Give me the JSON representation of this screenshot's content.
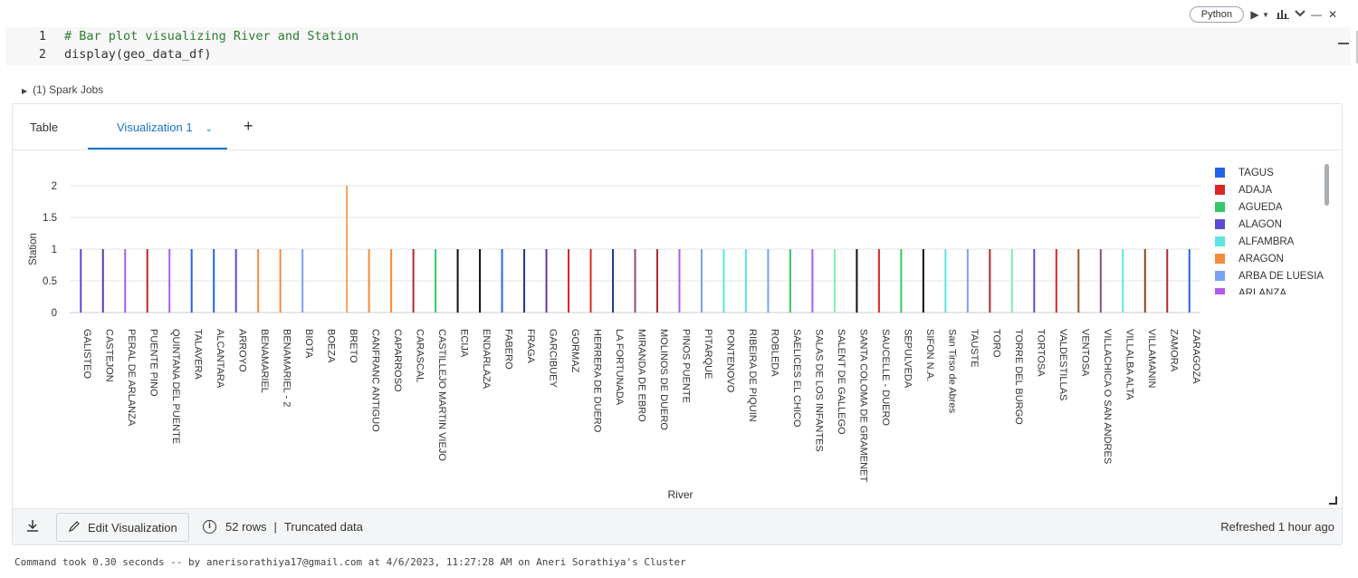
{
  "toolbar": {
    "language": "Python",
    "run_icon": "play-icon",
    "chart_icon": "chart-icon",
    "chevron_icon": "chevron-down-icon",
    "minimize_icon": "minimize-icon",
    "close_icon": "close-icon"
  },
  "code": {
    "lines": [
      {
        "num": "1",
        "text": "# Bar plot visualizing River and Station"
      },
      {
        "num": "2",
        "text": "display(geo_data_df)"
      }
    ]
  },
  "spark_jobs": "(1) Spark Jobs",
  "tabs": {
    "table": "Table",
    "visualization": "Visualization 1",
    "add": "+"
  },
  "chart_data": {
    "type": "bar",
    "xlabel": "River",
    "ylabel": "Station",
    "ylim": [
      0,
      2
    ],
    "yticks": [
      "0",
      "0.5",
      "1",
      "1.5",
      "2"
    ],
    "categories": [
      "GALISTEO",
      "CASTEJON",
      "PERAL DE ARLANZA",
      "PUENTE PINO",
      "QUINTANA DEL PUENTE",
      "TALAVERA",
      "ALCANTARA",
      "ARROYO",
      "BENAMARIEL",
      "BENAMARIEL - 2",
      "BIOTA",
      "BOEZA",
      "BRETO",
      "CANFRANC ANTIGUO",
      "CAPARROSO",
      "CARASCAL",
      "CASTILLEJO MARTIN VIEJO",
      "ECIJA",
      "ENDARLAZA",
      "FABERO",
      "FRAGA",
      "GARCIBUEY",
      "GORMAZ",
      "HERRERA DE DUERO",
      "LA FORTUNADA",
      "MIRANDA DE EBRO",
      "MOLINOS DE DUERO",
      "PINOS PUENTE",
      "PITARQUE",
      "PONTENOVO",
      "RIBEIRA DE PIQUIN",
      "ROBLEDA",
      "SAELICES EL CHICO",
      "SALAS DE LOS INFANTES",
      "SALENT DE GALLEGO",
      "SANTA COLOMA DE GRAMENET",
      "SAUCELLE - DUERO",
      "SEPULVEDA",
      "SIFON N.A.",
      "San Tirso de Abres",
      "TAUSTE",
      "TORO",
      "TORRE DEL BURGO",
      "TORTOSA",
      "VALDESTILLAS",
      "VENTOSA",
      "VILLACHICA O SAN ANDRES",
      "VILLALBA ALTA",
      "VILLAMANIN",
      "ZAMORA",
      "ZARAGOZA"
    ],
    "legend": [
      {
        "name": "TAGUS",
        "color": "#2563eb"
      },
      {
        "name": "ADAJA",
        "color": "#dc2626"
      },
      {
        "name": "AGUEDA",
        "color": "#34c86a"
      },
      {
        "name": "ALAGON",
        "color": "#5b4bd6"
      },
      {
        "name": "ALFAMBRA",
        "color": "#5ce6e0"
      },
      {
        "name": "ARAGON",
        "color": "#f58b3c"
      },
      {
        "name": "ARBA DE LUESIA",
        "color": "#7ea0f2"
      },
      {
        "name": "ARLANZA",
        "color": "#b05ce6"
      }
    ],
    "series_bars": [
      {
        "value": 1,
        "color": "#5b4bd6"
      },
      {
        "value": 1,
        "color": "#5b3a9e"
      },
      {
        "value": 1,
        "color": "#b05ce6"
      },
      {
        "value": 1,
        "color": "#b3282d"
      },
      {
        "value": 1,
        "color": "#b05ce6"
      },
      {
        "value": 1,
        "color": "#2563eb"
      },
      {
        "value": 1,
        "color": "#2563eb"
      },
      {
        "value": 1,
        "color": "#5b4bd6"
      },
      {
        "value": 1,
        "color": "#f58b3c"
      },
      {
        "value": 1,
        "color": "#f58b3c"
      },
      {
        "value": 1,
        "color": "#7ea0f2"
      },
      {
        "value": 0,
        "color": "#999999"
      },
      {
        "value": 2,
        "color": "#f5a25c"
      },
      {
        "value": 1,
        "color": "#f58b3c"
      },
      {
        "value": 1,
        "color": "#f58b3c"
      },
      {
        "value": 1,
        "color": "#b3282d"
      },
      {
        "value": 1,
        "color": "#34c86a"
      },
      {
        "value": 1,
        "color": "#111111"
      },
      {
        "value": 1,
        "color": "#111111"
      },
      {
        "value": 1,
        "color": "#2563eb"
      },
      {
        "value": 1,
        "color": "#1e3a8a"
      },
      {
        "value": 1,
        "color": "#5b3a9e"
      },
      {
        "value": 1,
        "color": "#dc2626"
      },
      {
        "value": 1,
        "color": "#dc2626"
      },
      {
        "value": 1,
        "color": "#1e3a8a"
      },
      {
        "value": 1,
        "color": "#8a4e7a"
      },
      {
        "value": 1,
        "color": "#b3282d"
      },
      {
        "value": 1,
        "color": "#b05ce6"
      },
      {
        "value": 1,
        "color": "#7ea0f2"
      },
      {
        "value": 1,
        "color": "#5ce6e0"
      },
      {
        "value": 1,
        "color": "#5ce6e0"
      },
      {
        "value": 1,
        "color": "#7ea0f2"
      },
      {
        "value": 1,
        "color": "#34c86a"
      },
      {
        "value": 1,
        "color": "#b05ce6"
      },
      {
        "value": 1,
        "color": "#7ef0b0"
      },
      {
        "value": 1,
        "color": "#111111"
      },
      {
        "value": 1,
        "color": "#dc2626"
      },
      {
        "value": 1,
        "color": "#34c86a"
      },
      {
        "value": 1,
        "color": "#111111"
      },
      {
        "value": 1,
        "color": "#5ce6e0"
      },
      {
        "value": 1,
        "color": "#7ea0f2"
      },
      {
        "value": 1,
        "color": "#b3282d"
      },
      {
        "value": 1,
        "color": "#7ef0b0"
      },
      {
        "value": 1,
        "color": "#5b4bd6"
      },
      {
        "value": 1,
        "color": "#dc2626"
      },
      {
        "value": 1,
        "color": "#a0522d"
      },
      {
        "value": 1,
        "color": "#8a4e7a"
      },
      {
        "value": 1,
        "color": "#5ce6e0"
      },
      {
        "value": 1,
        "color": "#8b4513"
      },
      {
        "value": 1,
        "color": "#b3282d"
      },
      {
        "value": 1,
        "color": "#2563eb"
      }
    ]
  },
  "footer": {
    "edit_label": "Edit Visualization",
    "rows": "52 rows",
    "truncated": "Truncated data",
    "refreshed": "Refreshed 1 hour ago"
  },
  "command_info": "Command took 0.30 seconds -- by anerisorathiya17@gmail.com at 4/6/2023, 11:27:28 AM on Aneri Sorathiya's Cluster"
}
